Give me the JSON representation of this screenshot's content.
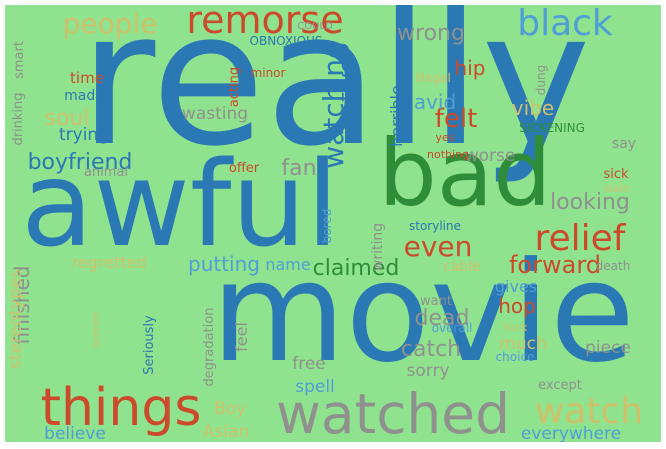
{
  "background": "#90e38e",
  "words": [
    {
      "text": "really",
      "color": "#2a78b4"
    },
    {
      "text": "movie",
      "color": "#2a78b4"
    },
    {
      "text": "awful",
      "color": "#2a78b4"
    },
    {
      "text": "bad",
      "color": "#2f8d3a"
    },
    {
      "text": "watched",
      "color": "#8f918f"
    },
    {
      "text": "things",
      "color": "#cc4a2c"
    },
    {
      "text": "remorse",
      "color": "#cc4a2c"
    },
    {
      "text": "black",
      "color": "#4f9ed6"
    },
    {
      "text": "relief",
      "color": "#cc4a2c"
    },
    {
      "text": "watch",
      "color": "#cfc16c"
    },
    {
      "text": "people",
      "color": "#cfc16c"
    },
    {
      "text": "even",
      "color": "#cc4a2c"
    },
    {
      "text": "felt",
      "color": "#cc4a2c"
    },
    {
      "text": "watching",
      "color": "#2a78b4"
    },
    {
      "text": "forward",
      "color": "#cc4a2c"
    },
    {
      "text": "wrong",
      "color": "#8f918f"
    },
    {
      "text": "two",
      "color": "#2a78b4"
    },
    {
      "text": "soul",
      "color": "#cfc16c"
    },
    {
      "text": "hip",
      "color": "#cc4a2c"
    },
    {
      "text": "fan",
      "color": "#8f918f"
    },
    {
      "text": "claimed",
      "color": "#2f8d3a"
    },
    {
      "text": "boyfriend",
      "color": "#2a78b4"
    },
    {
      "text": "looking",
      "color": "#8f918f"
    },
    {
      "text": "dead",
      "color": "#8f918f"
    },
    {
      "text": "catch",
      "color": "#8f918f"
    },
    {
      "text": "hop",
      "color": "#cc4a2c"
    },
    {
      "text": "vibe",
      "color": "#cfc16c"
    },
    {
      "text": "avid",
      "color": "#4f9ed6"
    },
    {
      "text": "finished",
      "color": "#8f918f"
    },
    {
      "text": "putting",
      "color": "#4f9ed6"
    },
    {
      "text": "wasting",
      "color": "#8f918f"
    },
    {
      "text": "trying",
      "color": "#2a78b4"
    },
    {
      "text": "worse",
      "color": "#8f918f"
    },
    {
      "text": "piece",
      "color": "#8f918f"
    },
    {
      "text": "much",
      "color": "#cfc16c"
    },
    {
      "text": "Boy",
      "color": "#cfc16c"
    },
    {
      "text": "sorry",
      "color": "#8f918f"
    },
    {
      "text": "spell",
      "color": "#4f9ed6"
    },
    {
      "text": "free",
      "color": "#8f918f"
    },
    {
      "text": "everywhere",
      "color": "#4f9ed6"
    },
    {
      "text": "believe",
      "color": "#4f9ed6"
    },
    {
      "text": "Asian",
      "color": "#cfc16c"
    },
    {
      "text": "stereotypes",
      "color": "#cfc16c"
    },
    {
      "text": "regretted",
      "color": "#cfc16c"
    },
    {
      "text": "gives",
      "color": "#4f9ed6"
    },
    {
      "text": "horrible",
      "color": "#2a78b4"
    },
    {
      "text": "name",
      "color": "#4f9ed6"
    },
    {
      "text": "feel",
      "color": "#8f918f"
    },
    {
      "text": "time",
      "color": "#cc4a2c"
    },
    {
      "text": "made",
      "color": "#2a78b4"
    },
    {
      "text": "smart",
      "color": "#8f918f"
    },
    {
      "text": "drinking",
      "color": "#8f918f"
    },
    {
      "text": "acting",
      "color": "#cc4a2c"
    },
    {
      "text": "minor",
      "color": "#cc4a2c"
    },
    {
      "text": "OBNOXIOUS",
      "color": "#2a78b4"
    },
    {
      "text": "COULD",
      "color": "#8f918f"
    },
    {
      "text": "illegal",
      "color": "#cfc16c"
    },
    {
      "text": "dung",
      "color": "#8f918f"
    },
    {
      "text": "SICKENING",
      "color": "#2f8d3a"
    },
    {
      "text": "nothing",
      "color": "#cc4a2c"
    },
    {
      "text": "sick",
      "color": "#cc4a2c"
    },
    {
      "text": "slain",
      "color": "#cfc16c"
    },
    {
      "text": "say",
      "color": "#8f918f"
    },
    {
      "text": "storyline",
      "color": "#2a78b4"
    },
    {
      "text": "writing",
      "color": "#8f918f"
    },
    {
      "text": "bored",
      "color": "#4f9ed6"
    },
    {
      "text": "offer",
      "color": "#cc4a2c"
    },
    {
      "text": "animal",
      "color": "#8f918f"
    },
    {
      "text": "cable",
      "color": "#cfc16c"
    },
    {
      "text": "death",
      "color": "#8f918f"
    },
    {
      "text": "want",
      "color": "#8f918f"
    },
    {
      "text": "overall",
      "color": "#4f9ed6"
    },
    {
      "text": "Yuck",
      "color": "#cfc16c"
    },
    {
      "text": "choice",
      "color": "#4f9ed6"
    },
    {
      "text": "except",
      "color": "#8f918f"
    },
    {
      "text": "degradation",
      "color": "#8f918f"
    },
    {
      "text": "Seriously",
      "color": "#2a78b4"
    },
    {
      "text": "women",
      "color": "#cfc16c"
    },
    {
      "text": "yes",
      "color": "#cc4a2c"
    }
  ]
}
